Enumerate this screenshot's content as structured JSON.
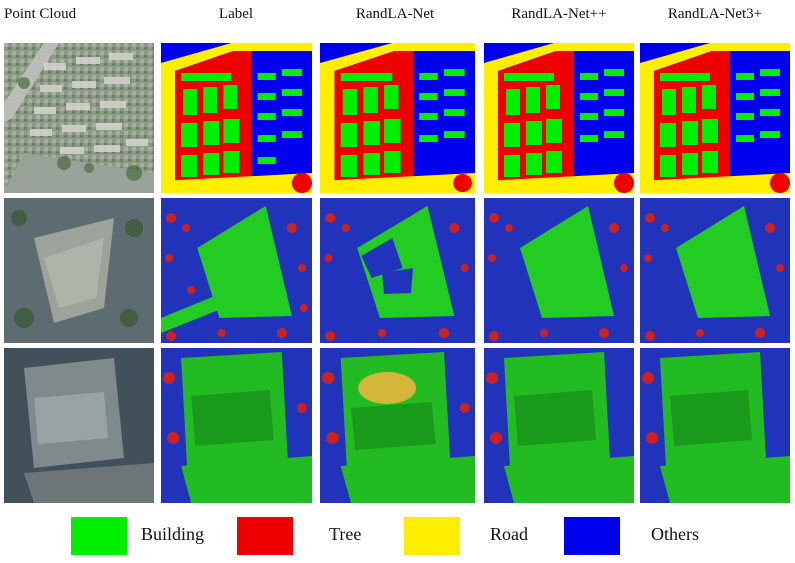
{
  "columns": [
    "Point Cloud",
    "Label",
    "RandLA-Net",
    "RandLA-Net++",
    "RandLA-Net3+"
  ],
  "colors": {
    "building": "#00ee00",
    "tree": "#ee0000",
    "road": "#ffee00",
    "others": "#0000ee",
    "others_dark": "#2233bb"
  },
  "legend": [
    {
      "name": "Building",
      "color": "#00ee00"
    },
    {
      "name": "Tree",
      "color": "#ee0000"
    },
    {
      "name": "Road",
      "color": "#ffee00"
    },
    {
      "name": "Others",
      "color": "#0000ee"
    }
  ]
}
